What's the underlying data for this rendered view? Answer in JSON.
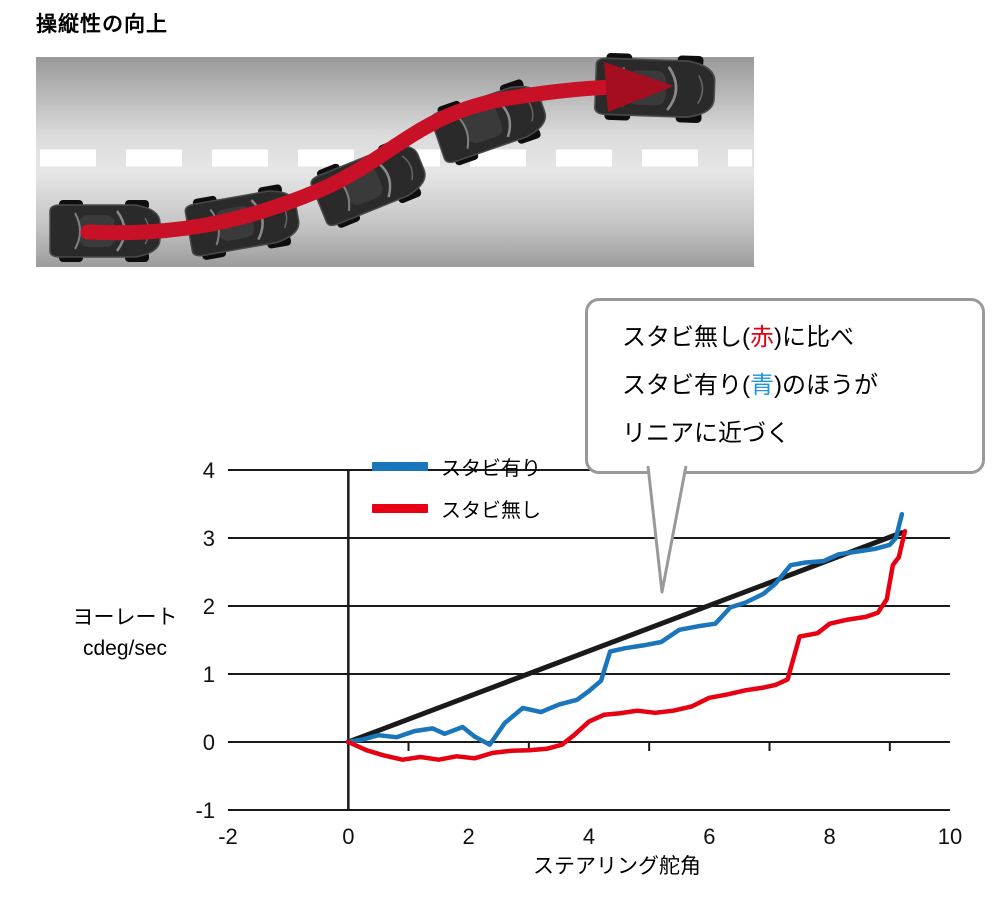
{
  "header": {
    "title": "操縦性の向上"
  },
  "road_scene": {
    "car_count": 5,
    "colors": {
      "road_gray": "#9c9c9c",
      "lane_dash": "#ffffff",
      "path_red": "#c81126",
      "arrowhead_red": "#a50d20",
      "car_body": "#2a2a2a"
    }
  },
  "callout": {
    "l1a": "スタビ無し(",
    "l1b": "赤",
    "l1c": ")に比べ",
    "l2a": "スタビ有り(",
    "l2b": "青",
    "l2c": ")のほうが",
    "l3": "リニアに近づく",
    "accent_red": "#e60012",
    "accent_blue": "#2096d4"
  },
  "chart_data": {
    "type": "line",
    "title": "",
    "xlabel": "ステアリング舵角",
    "ylabel_line1": "ヨーレート",
    "ylabel_line2": "cdeg/sec",
    "xlim": [
      -2,
      10
    ],
    "ylim": [
      -1,
      4
    ],
    "grid": "horizontal-only",
    "axis_color": "#1a1a1a",
    "legend_position": "top-left-inside",
    "x_ticks": [
      {
        "v": -2,
        "label": "-2"
      },
      {
        "v": 0,
        "label": "0"
      },
      {
        "v": 2,
        "label": "2"
      },
      {
        "v": 4,
        "label": "4"
      },
      {
        "v": 6,
        "label": "6"
      },
      {
        "v": 8,
        "label": "8"
      },
      {
        "v": 10,
        "label": "10"
      }
    ],
    "y_ticks": [
      {
        "v": 4,
        "label": "4"
      },
      {
        "v": 3,
        "label": "3"
      },
      {
        "v": 2,
        "label": "2"
      },
      {
        "v": 1,
        "label": "1"
      },
      {
        "v": 0,
        "label": "0"
      },
      {
        "v": -1,
        "label": "-1"
      }
    ],
    "minor_ticks_x": [
      1,
      3,
      5,
      7,
      9
    ],
    "legend": [
      {
        "label": "スタビ有り",
        "color": "#1b75bb"
      },
      {
        "label": "スタビ無し",
        "color": "#e60012"
      }
    ],
    "series": [
      {
        "name": "linear-reference",
        "color": "#1a1a1a",
        "width": 5,
        "points": [
          [
            0,
            0
          ],
          [
            9.2,
            3.08
          ]
        ]
      },
      {
        "name": "スタビ有り",
        "color": "#1b75bb",
        "width": 4.5,
        "points": [
          [
            0,
            0
          ],
          [
            0.25,
            0.04
          ],
          [
            0.5,
            0.1
          ],
          [
            0.8,
            0.07
          ],
          [
            1.1,
            0.16
          ],
          [
            1.4,
            0.2
          ],
          [
            1.6,
            0.12
          ],
          [
            1.9,
            0.22
          ],
          [
            2.1,
            0.08
          ],
          [
            2.35,
            -0.04
          ],
          [
            2.6,
            0.28
          ],
          [
            2.9,
            0.5
          ],
          [
            3.2,
            0.44
          ],
          [
            3.5,
            0.55
          ],
          [
            3.8,
            0.62
          ],
          [
            4.0,
            0.75
          ],
          [
            4.2,
            0.9
          ],
          [
            4.35,
            1.33
          ],
          [
            4.6,
            1.38
          ],
          [
            4.9,
            1.42
          ],
          [
            5.2,
            1.47
          ],
          [
            5.5,
            1.65
          ],
          [
            5.8,
            1.7
          ],
          [
            6.1,
            1.74
          ],
          [
            6.35,
            1.98
          ],
          [
            6.6,
            2.05
          ],
          [
            6.9,
            2.18
          ],
          [
            7.1,
            2.33
          ],
          [
            7.35,
            2.6
          ],
          [
            7.6,
            2.64
          ],
          [
            7.9,
            2.66
          ],
          [
            8.15,
            2.76
          ],
          [
            8.45,
            2.8
          ],
          [
            8.75,
            2.84
          ],
          [
            9.0,
            2.9
          ],
          [
            9.1,
            3.0
          ],
          [
            9.2,
            3.35
          ]
        ]
      },
      {
        "name": "スタビ無し",
        "color": "#e60012",
        "width": 4.5,
        "points": [
          [
            0,
            0
          ],
          [
            0.3,
            -0.12
          ],
          [
            0.6,
            -0.2
          ],
          [
            0.9,
            -0.26
          ],
          [
            1.2,
            -0.22
          ],
          [
            1.5,
            -0.26
          ],
          [
            1.8,
            -0.21
          ],
          [
            2.1,
            -0.24
          ],
          [
            2.4,
            -0.16
          ],
          [
            2.7,
            -0.13
          ],
          [
            3.0,
            -0.12
          ],
          [
            3.3,
            -0.1
          ],
          [
            3.55,
            -0.04
          ],
          [
            3.75,
            0.1
          ],
          [
            4.0,
            0.3
          ],
          [
            4.25,
            0.4
          ],
          [
            4.5,
            0.42
          ],
          [
            4.8,
            0.46
          ],
          [
            5.1,
            0.43
          ],
          [
            5.4,
            0.46
          ],
          [
            5.7,
            0.52
          ],
          [
            6.0,
            0.65
          ],
          [
            6.3,
            0.7
          ],
          [
            6.6,
            0.76
          ],
          [
            6.9,
            0.8
          ],
          [
            7.1,
            0.84
          ],
          [
            7.3,
            0.92
          ],
          [
            7.5,
            1.55
          ],
          [
            7.8,
            1.6
          ],
          [
            8.0,
            1.74
          ],
          [
            8.3,
            1.8
          ],
          [
            8.6,
            1.84
          ],
          [
            8.8,
            1.9
          ],
          [
            8.95,
            2.1
          ],
          [
            9.05,
            2.6
          ],
          [
            9.15,
            2.72
          ],
          [
            9.25,
            3.1
          ]
        ]
      }
    ]
  }
}
